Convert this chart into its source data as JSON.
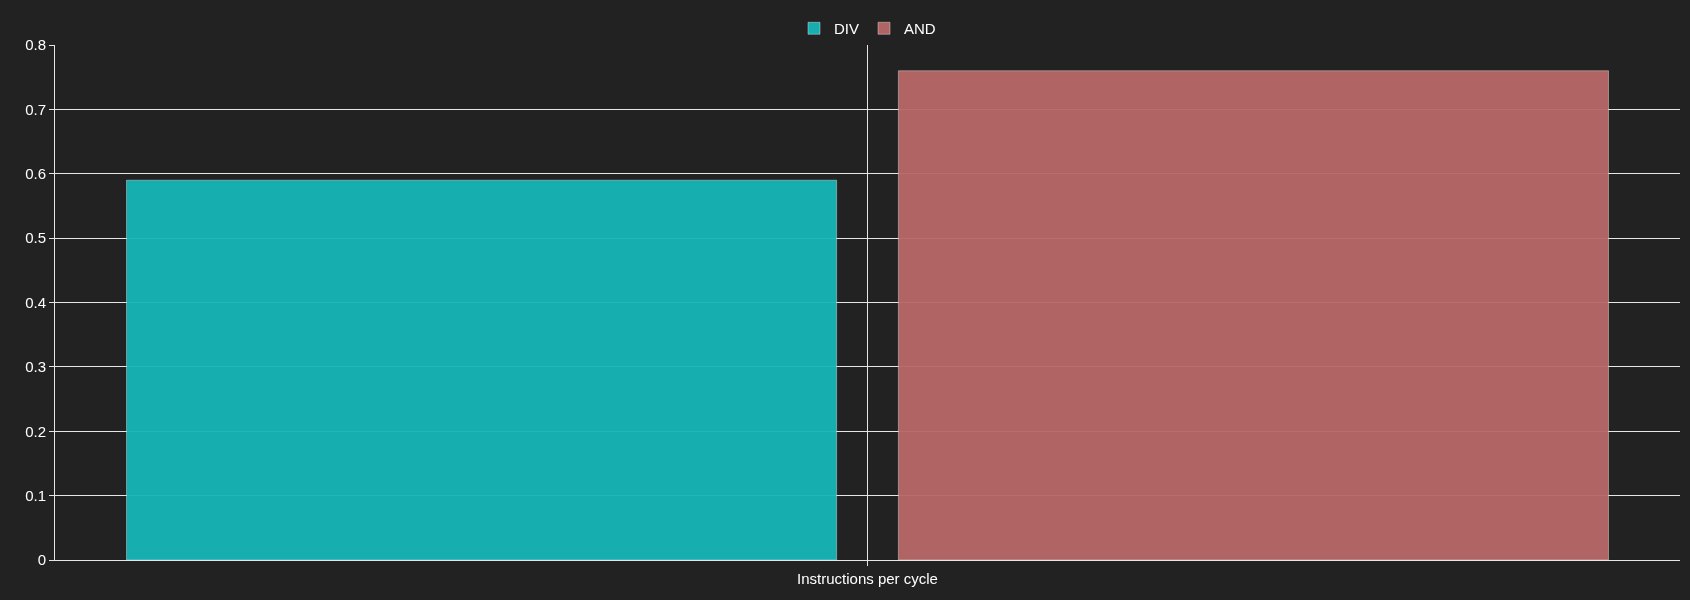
{
  "chart_data": {
    "type": "bar",
    "categories": [
      "Instructions per cycle"
    ],
    "series": [
      {
        "name": "DIV",
        "color": "#17b6b8",
        "values": [
          0.59
        ]
      },
      {
        "name": "AND",
        "color": "#b86868",
        "values": [
          0.76
        ]
      }
    ],
    "ylim": [
      0,
      0.8
    ],
    "yticks": [
      0,
      0.1,
      0.2,
      0.3,
      0.4,
      0.5,
      0.6,
      0.7,
      0.8
    ],
    "grid": true,
    "legend": "top"
  }
}
